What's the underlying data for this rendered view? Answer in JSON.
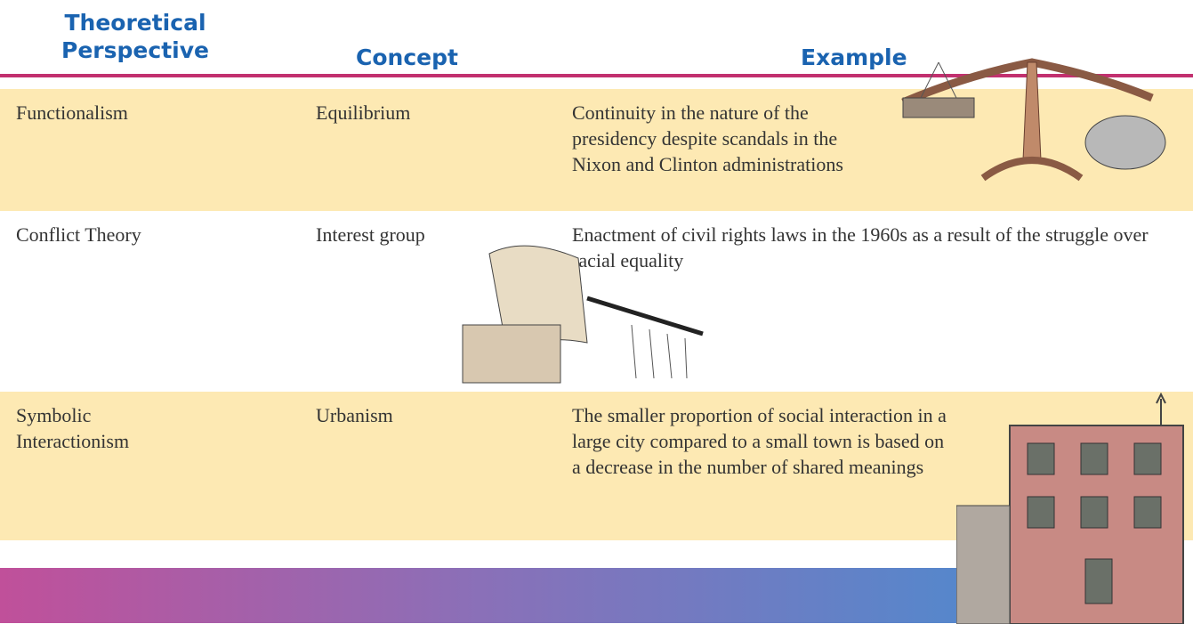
{
  "header": {
    "columns": [
      "Theoretical Perspective",
      "Concept",
      "Example"
    ]
  },
  "table": {
    "rows": [
      [
        "Functionalism",
        "Equilibrium",
        "Continuity in the nature of the presidency despite scandals in the Nixon and Clinton administrations"
      ],
      [
        "Conflict Theory",
        "Interest group",
        "Enactment of civil rights laws in the 1960s as a result of the struggle over racial equality"
      ],
      [
        "Symbolic Interactionism",
        "Urbanism",
        "The smaller proportion of social interaction in a large city compared to a small town is based on a decrease in the number of shared meanings"
      ]
    ]
  }
}
